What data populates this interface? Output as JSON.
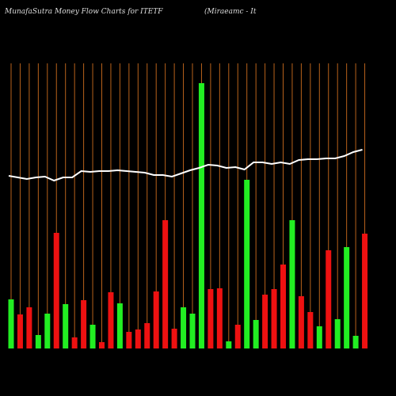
{
  "chart_data": {
    "type": "bar",
    "title": "MunafaSutra  Money Flow  Charts for ITETF",
    "subtitle": "(Miraeamc  -  It",
    "background": "#000000",
    "grid_color": "#b8621b",
    "categories": [
      null,
      null,
      null,
      null,
      null,
      null,
      null,
      null,
      null,
      null,
      null,
      null,
      null,
      null,
      null,
      null,
      null,
      null,
      null,
      null,
      null,
      null,
      null,
      null,
      null,
      null,
      null,
      null,
      null,
      null,
      null,
      null,
      null,
      null,
      null,
      null,
      null,
      null,
      null,
      null
    ],
    "values": [
      62,
      43,
      52,
      17,
      44,
      146,
      56,
      14,
      61,
      30,
      8,
      71,
      57,
      21,
      24,
      32,
      72,
      162,
      25,
      52,
      44,
      335,
      75,
      76,
      9,
      30,
      213,
      36,
      68,
      75,
      106,
      162,
      66,
      46,
      28,
      124,
      37,
      128,
      16,
      145
    ],
    "colors": [
      "#22ee22",
      "#ee1111",
      "#ee1111",
      "#22ee22",
      "#22ee22",
      "#ee1111",
      "#22ee22",
      "#ee1111",
      "#ee1111",
      "#22ee22",
      "#ee1111",
      "#ee1111",
      "#22ee22",
      "#ee1111",
      "#ee1111",
      "#ee1111",
      "#ee1111",
      "#ee1111",
      "#ee1111",
      "#22ee22",
      "#22ee22",
      "#22ee22",
      "#ee1111",
      "#ee1111",
      "#22ee22",
      "#ee1111",
      "#22ee22",
      "#22ee22",
      "#ee1111",
      "#ee1111",
      "#ee1111",
      "#22ee22",
      "#ee1111",
      "#ee1111",
      "#22ee22",
      "#ee1111",
      "#22ee22",
      "#22ee22",
      "#22ee22",
      "#ee1111"
    ],
    "line": {
      "color": "#ffffff",
      "values": [
        218,
        216,
        214,
        216,
        217,
        212,
        216,
        216,
        224,
        223,
        224,
        224,
        225,
        224,
        223,
        222,
        219,
        219,
        217,
        221,
        225,
        228,
        232,
        231,
        228,
        229,
        226,
        235,
        235,
        233,
        235,
        233,
        238,
        239,
        239,
        240,
        240,
        243,
        248,
        251
      ]
    },
    "ylim": [
      0,
      360
    ]
  }
}
